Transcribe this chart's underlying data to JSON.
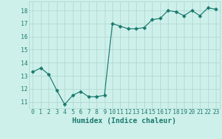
{
  "x": [
    0,
    1,
    2,
    3,
    4,
    5,
    6,
    7,
    8,
    9,
    10,
    11,
    12,
    13,
    14,
    15,
    16,
    17,
    18,
    19,
    20,
    21,
    22,
    23
  ],
  "y": [
    13.3,
    13.6,
    13.1,
    11.9,
    10.8,
    11.5,
    11.8,
    11.4,
    11.4,
    11.5,
    17.0,
    16.8,
    16.6,
    16.6,
    16.7,
    17.3,
    17.4,
    18.0,
    17.9,
    17.6,
    18.0,
    17.6,
    18.2,
    18.1
  ],
  "line_color": "#1a7a6e",
  "marker": "D",
  "marker_size": 2.5,
  "bg_color": "#cef0ea",
  "grid_color": "#aed8d2",
  "xlabel": "Humidex (Indice chaleur)",
  "xlabel_color": "#1a7a6e",
  "xlabel_fontsize": 7.5,
  "tick_color": "#1a7a6e",
  "tick_fontsize": 6,
  "ylim": [
    10.5,
    18.7
  ],
  "xlim": [
    -0.5,
    23.5
  ],
  "yticks": [
    11,
    12,
    13,
    14,
    15,
    16,
    17,
    18
  ],
  "xticks": [
    0,
    1,
    2,
    3,
    4,
    5,
    6,
    7,
    8,
    9,
    10,
    11,
    12,
    13,
    14,
    15,
    16,
    17,
    18,
    19,
    20,
    21,
    22,
    23
  ]
}
